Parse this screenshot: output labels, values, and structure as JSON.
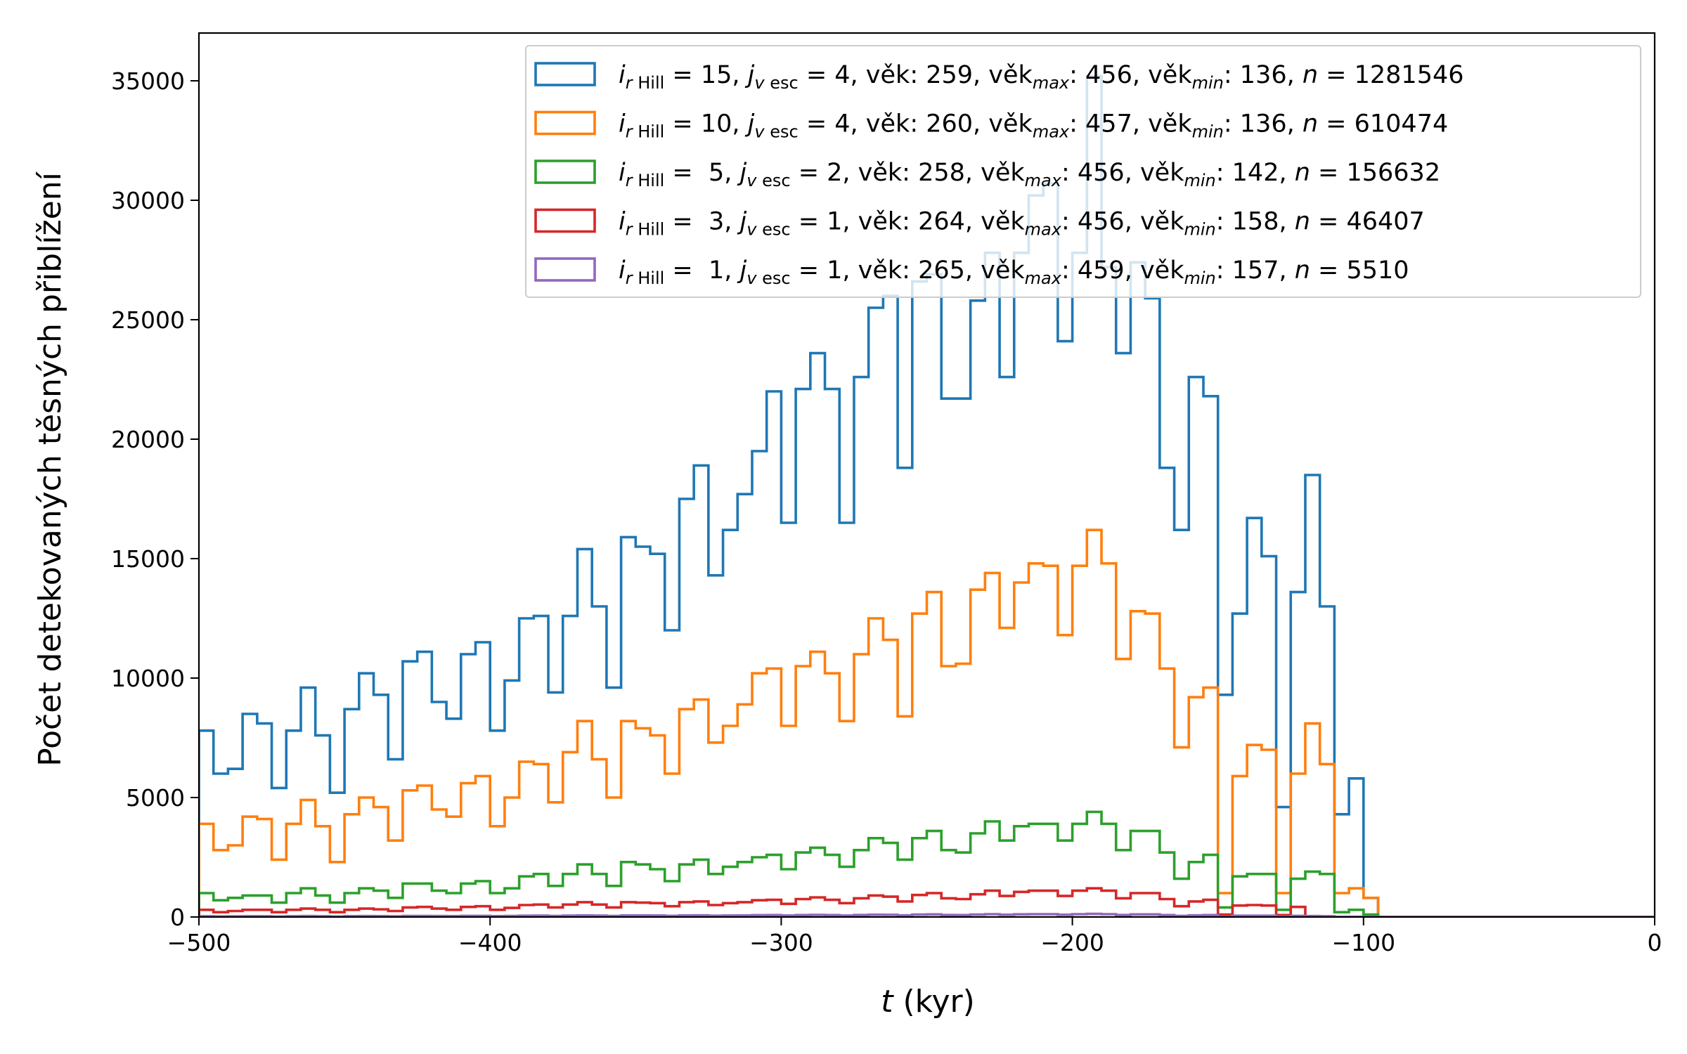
{
  "chart_data": {
    "type": "histogram",
    "xlabel": "t (kyr)",
    "ylabel": "Počet detekovaných těsných přiblížení",
    "xlim": [
      -500,
      0
    ],
    "ylim": [
      0,
      37000
    ],
    "xticks": [
      -500,
      -400,
      -300,
      -200,
      -100,
      0
    ],
    "xtick_labels": [
      "−500",
      "−400",
      "−300",
      "−200",
      "−100",
      "0"
    ],
    "yticks": [
      0,
      5000,
      10000,
      15000,
      20000,
      25000,
      30000,
      35000
    ],
    "ytick_labels": [
      "0",
      "5000",
      "10000",
      "15000",
      "20000",
      "25000",
      "30000",
      "35000"
    ],
    "bin_width": 5,
    "bins_start": -500,
    "histtype": "step",
    "legend_position": "upper right",
    "series": [
      {
        "name": "i_rHill = 15, j_vesc = 4, věk: 259, věk_max: 456, věk_min: 136, n = 1281546",
        "legend": {
          "i": "15",
          "j": "4",
          "vek": "259",
          "vek_max": "456",
          "vek_min": "136",
          "n": "1281546"
        },
        "color": "#1f77b4",
        "values": [
          7800,
          6000,
          6200,
          8500,
          8100,
          5400,
          7800,
          9600,
          7600,
          5200,
          8700,
          10200,
          9300,
          6600,
          10700,
          11100,
          9000,
          8300,
          11000,
          11500,
          7800,
          9900,
          12500,
          12600,
          9400,
          12600,
          15400,
          13000,
          9600,
          15900,
          15500,
          15200,
          12000,
          17500,
          18900,
          14300,
          16200,
          17700,
          19500,
          22000,
          16500,
          22100,
          23600,
          22100,
          16500,
          22600,
          25500,
          26000,
          18800,
          26600,
          26900,
          21700,
          21700,
          25800,
          27800,
          22600,
          27800,
          30200,
          30700,
          24100,
          27800,
          35200,
          27200,
          23600,
          27400,
          25900,
          18800,
          16200,
          22600,
          21800,
          9300,
          12700,
          16700,
          15100,
          4600,
          13600,
          18500,
          13000,
          4300,
          5800,
          800,
          0,
          0,
          0,
          0,
          0,
          0,
          0,
          0,
          0,
          0,
          0,
          0,
          0,
          0,
          0,
          0,
          0,
          0,
          0
        ]
      },
      {
        "name": "i_rHill = 10, j_vesc = 4, věk: 260, věk_max: 457, věk_min: 136, n = 610474",
        "legend": {
          "i": "10",
          "j": "4",
          "vek": "260",
          "vek_max": "457",
          "vek_min": "136",
          "n": "610474"
        },
        "color": "#ff7f0e",
        "values": [
          3900,
          2800,
          3000,
          4200,
          4100,
          2400,
          3900,
          4900,
          3800,
          2300,
          4300,
          5000,
          4600,
          3200,
          5300,
          5500,
          4500,
          4200,
          5600,
          5900,
          3800,
          5000,
          6500,
          6400,
          4800,
          6900,
          8200,
          6600,
          5000,
          8200,
          7900,
          7600,
          6000,
          8700,
          9100,
          7300,
          8000,
          8900,
          10200,
          10400,
          8000,
          10500,
          11100,
          10200,
          8200,
          11000,
          12500,
          11600,
          8400,
          12700,
          13600,
          10500,
          10600,
          13700,
          14400,
          12100,
          14000,
          14800,
          14700,
          11800,
          14700,
          16200,
          14800,
          10800,
          12800,
          12700,
          10400,
          7100,
          9200,
          9600,
          1000,
          5900,
          7200,
          7000,
          1000,
          6000,
          8100,
          6400,
          1000,
          1200,
          800,
          0,
          0,
          0,
          0,
          0,
          0,
          0,
          0,
          0,
          0,
          0,
          0,
          0,
          0,
          0,
          0,
          0,
          0,
          0
        ]
      },
      {
        "name": "i_rHill = 5, j_vesc = 2, věk: 258, věk_max: 456, věk_min: 142, n = 156632",
        "legend": {
          "i": " 5",
          "j": "2",
          "vek": "258",
          "vek_max": "456",
          "vek_min": "142",
          "n": "156632"
        },
        "color": "#2ca02c",
        "values": [
          1000,
          700,
          800,
          900,
          900,
          600,
          1000,
          1200,
          900,
          600,
          1000,
          1200,
          1100,
          800,
          1400,
          1400,
          1100,
          1000,
          1400,
          1500,
          1000,
          1200,
          1700,
          1800,
          1300,
          1800,
          2200,
          1800,
          1300,
          2300,
          2200,
          2000,
          1500,
          2200,
          2400,
          1800,
          2100,
          2300,
          2500,
          2600,
          2000,
          2700,
          2900,
          2600,
          2100,
          2800,
          3300,
          3100,
          2400,
          3300,
          3600,
          2800,
          2700,
          3500,
          4000,
          3200,
          3800,
          3900,
          3900,
          3200,
          3900,
          4400,
          3900,
          2800,
          3600,
          3600,
          2700,
          1600,
          2300,
          2600,
          400,
          1700,
          1800,
          1800,
          300,
          1600,
          1900,
          1800,
          200,
          300,
          100,
          0,
          0,
          0,
          0,
          0,
          0,
          0,
          0,
          0,
          0,
          0,
          0,
          0,
          0,
          0,
          0,
          0,
          0,
          0
        ]
      },
      {
        "name": "i_rHill = 3, j_vesc = 1, věk: 264, věk_max: 456, věk_min: 158, n = 46407",
        "legend": {
          "i": " 3",
          "j": "1",
          "vek": "264",
          "vek_max": "456",
          "vek_min": "158",
          "n": "46407"
        },
        "color": "#d62728",
        "values": [
          300,
          200,
          250,
          300,
          300,
          200,
          300,
          350,
          300,
          200,
          300,
          350,
          320,
          250,
          400,
          420,
          350,
          300,
          420,
          450,
          300,
          380,
          500,
          520,
          400,
          520,
          620,
          520,
          400,
          620,
          600,
          580,
          450,
          620,
          650,
          500,
          580,
          620,
          700,
          720,
          550,
          750,
          820,
          720,
          580,
          780,
          900,
          850,
          650,
          920,
          1000,
          780,
          750,
          950,
          1100,
          880,
          1050,
          1100,
          1100,
          880,
          1100,
          1200,
          1100,
          780,
          1000,
          1000,
          750,
          450,
          650,
          720,
          100,
          480,
          500,
          480,
          80,
          420,
          0,
          0,
          0,
          0,
          0,
          0,
          0,
          0,
          0,
          0,
          0,
          0,
          0,
          0,
          0,
          0,
          0,
          0,
          0,
          0,
          0,
          0,
          0,
          0
        ]
      },
      {
        "name": "i_rHill = 1, j_vesc = 1, věk: 265, věk_max: 459, věk_min: 157, n = 5510",
        "legend": {
          "i": " 1",
          "j": "1",
          "vek": "265",
          "vek_max": "459",
          "vek_min": "157",
          "n": "5510"
        },
        "color": "#9467bd",
        "values": [
          30,
          25,
          28,
          32,
          32,
          22,
          32,
          38,
          32,
          22,
          34,
          38,
          36,
          28,
          42,
          44,
          38,
          34,
          46,
          48,
          34,
          42,
          55,
          56,
          44,
          56,
          66,
          56,
          44,
          66,
          64,
          62,
          48,
          66,
          70,
          54,
          62,
          66,
          75,
          78,
          60,
          80,
          88,
          78,
          62,
          84,
          96,
          92,
          70,
          100,
          108,
          84,
          80,
          102,
          118,
          94,
          112,
          118,
          118,
          94,
          118,
          130,
          118,
          84,
          108,
          108,
          80,
          48,
          70,
          78,
          10,
          52,
          54,
          52,
          8,
          45,
          40,
          30,
          5,
          8,
          2,
          0,
          0,
          0,
          0,
          0,
          0,
          0,
          0,
          0,
          0,
          0,
          0,
          0,
          0,
          0,
          0,
          0,
          0,
          0
        ]
      }
    ]
  }
}
